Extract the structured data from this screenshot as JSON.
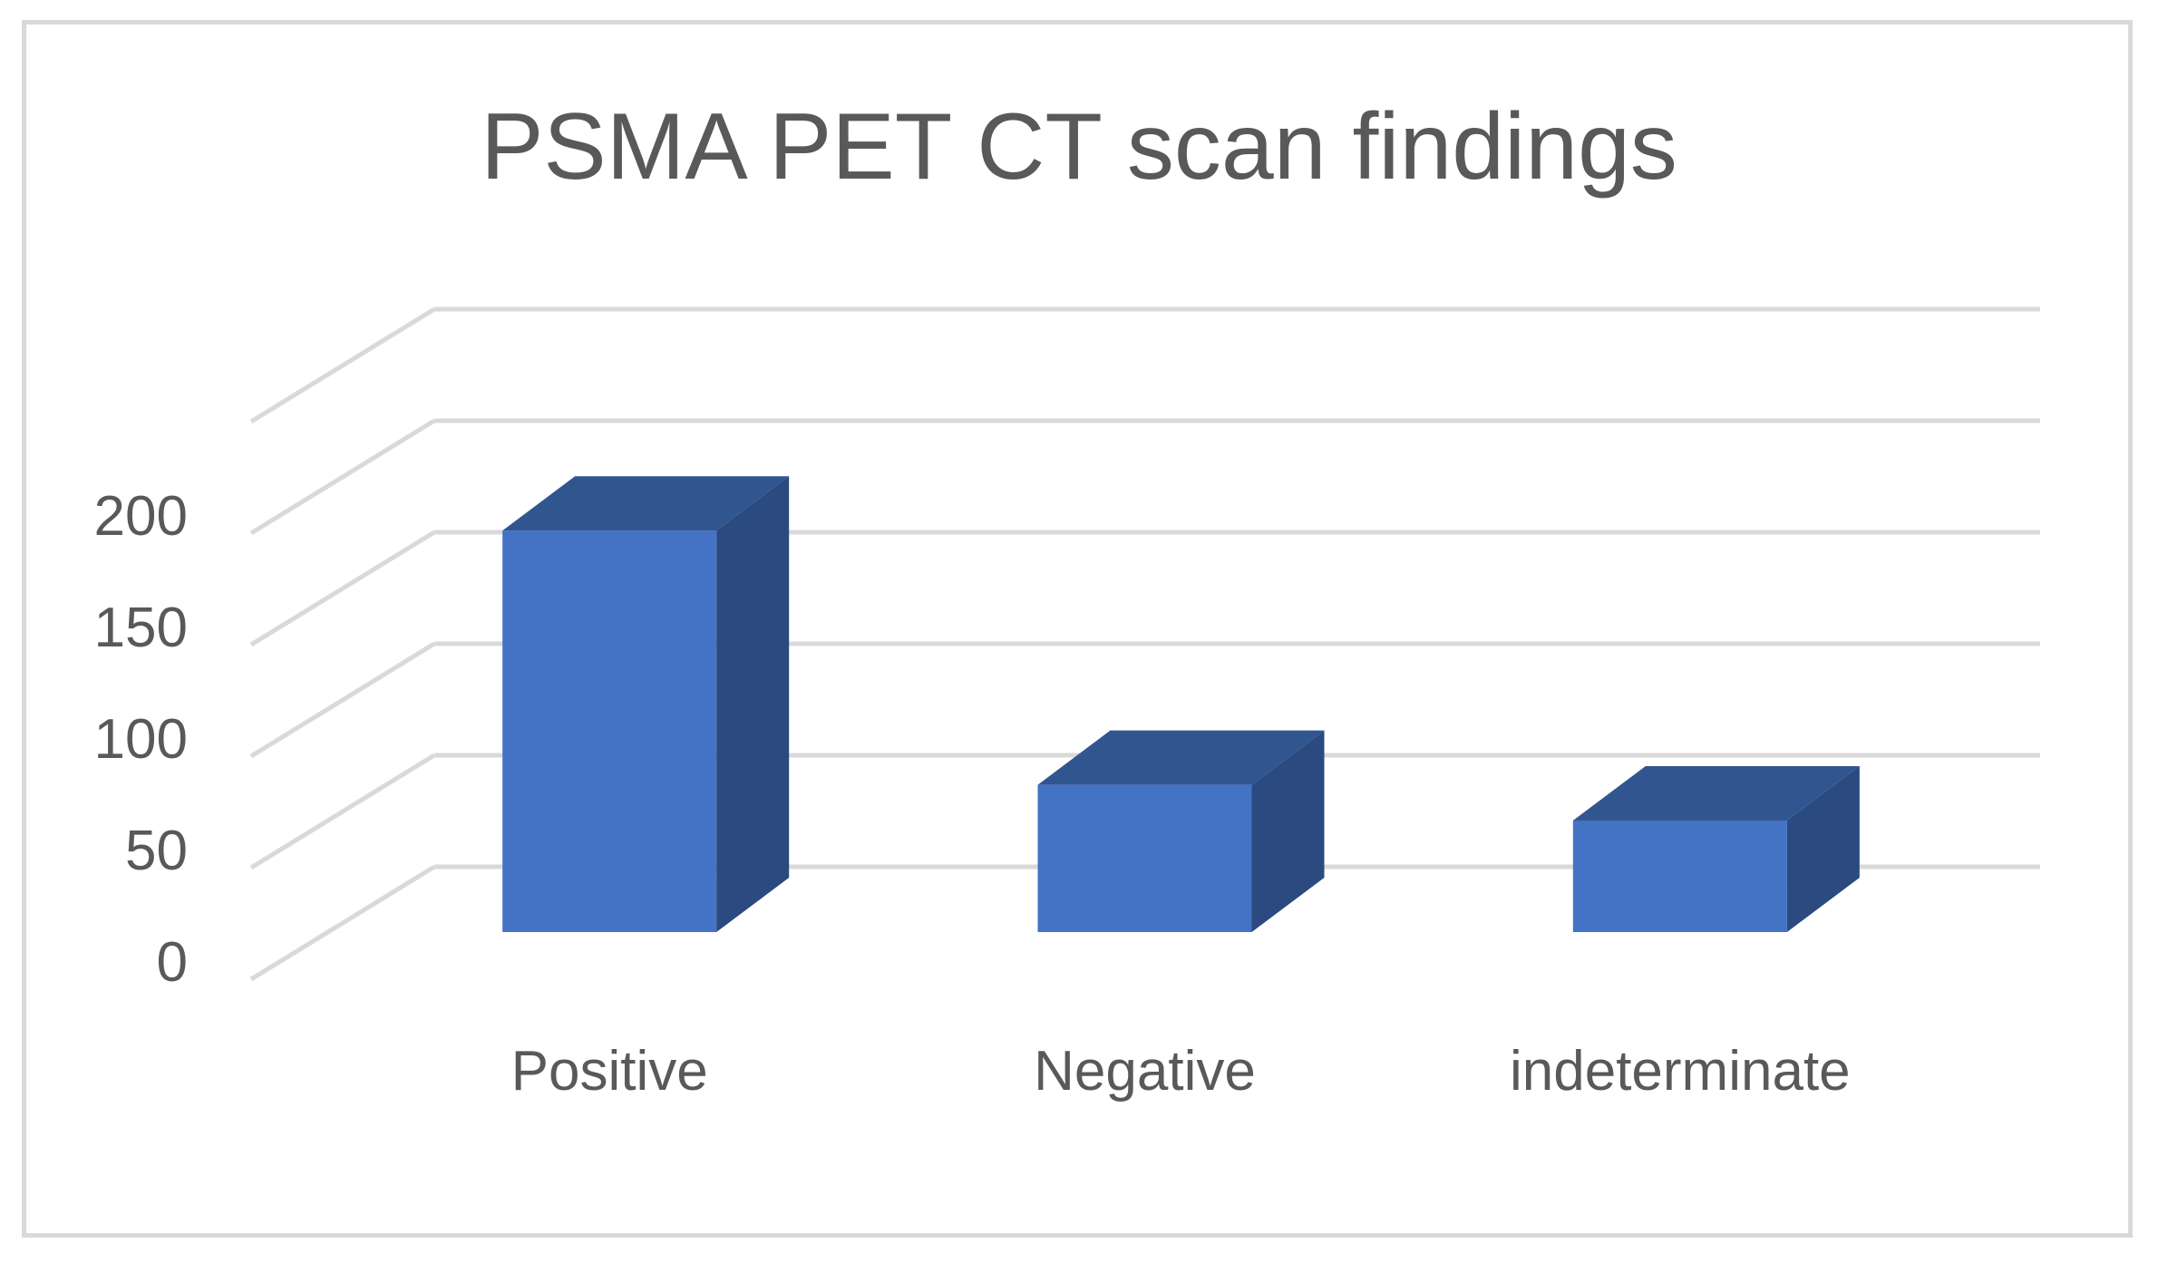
{
  "chart_data": {
    "type": "bar",
    "title": "PSMA PET CT scan findings",
    "xlabel": "",
    "ylabel": "",
    "categories": [
      "Positive",
      "Negative",
      "indeterminate"
    ],
    "values": [
      180,
      66,
      50
    ],
    "ylim": [
      0,
      250
    ],
    "yticks": [
      "0",
      "50",
      "100",
      "150",
      "200"
    ],
    "grid": true,
    "legend": "none",
    "style": "3d-column",
    "colors": {
      "bar_front": "#4472c4",
      "bar_side": "#2a4a80",
      "bar_top": "#31558f",
      "grid": "#d9d9d9",
      "text": "#595959",
      "frame": "#d9d9d9"
    }
  }
}
